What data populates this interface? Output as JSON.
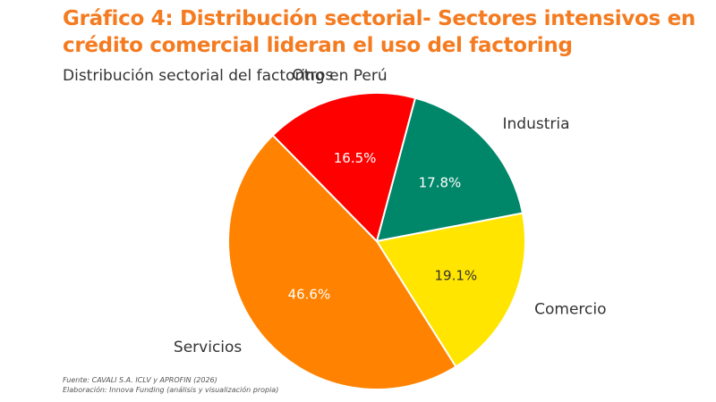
{
  "chart_data": {
    "type": "pie",
    "title": "Gráfico 4: Distribución sectorial- Sectores intensivos en crédito comercial lideran el uso del factoring",
    "subtitle": "Distribución sectorial del factoring en Perú",
    "categories": [
      "Industria",
      "Comercio",
      "Servicios",
      "Otros"
    ],
    "values": [
      17.8,
      19.1,
      46.6,
      16.5
    ],
    "value_labels": [
      "17.8%",
      "19.1%",
      "46.6%",
      "16.5%"
    ],
    "colors": [
      "#00876A",
      "#FFE500",
      "#FF8200",
      "#FF0000"
    ],
    "label_colors": [
      "#ffffff",
      "#333333",
      "#ffffff",
      "#ffffff"
    ],
    "start_angle_deg": 15,
    "legend": "none"
  },
  "footer": {
    "source": "Fuente: CAVALI S.A. ICLV y APROFIN (2026)",
    "credit": "Elaboración: Innova Funding (análisis y visualización propia)"
  }
}
